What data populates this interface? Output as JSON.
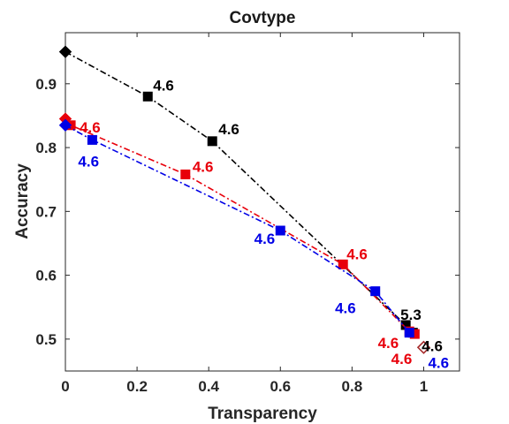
{
  "chart_data": {
    "type": "line",
    "title": "Covtype",
    "xlabel": "Transparency",
    "ylabel": "Accuracy",
    "xlim": [
      0,
      1.1
    ],
    "ylim": [
      0.45,
      0.98
    ],
    "xticks": [
      0,
      0.2,
      0.4,
      0.6,
      0.8,
      1
    ],
    "xtick_labels": [
      "0",
      "0.2",
      "0.4",
      "0.6",
      "0.8",
      "1"
    ],
    "yticks": [
      0.5,
      0.6,
      0.7,
      0.8,
      0.9
    ],
    "ytick_labels": [
      "0.5",
      "0.6",
      "0.7",
      "0.8",
      "0.9"
    ],
    "grid": false,
    "legend": false,
    "series": [
      {
        "color": "#000000",
        "line_style": "dash-dot",
        "start_marker": {
          "shape": "diamond",
          "x": 0.0,
          "y": 0.95
        },
        "points": [
          {
            "x": 0.23,
            "y": 0.88,
            "label": "4.6"
          },
          {
            "x": 0.41,
            "y": 0.81,
            "label": "4.6"
          },
          {
            "x": 0.95,
            "y": 0.522,
            "label": "5.3"
          },
          {
            "x": 0.97,
            "y": 0.51,
            "label": "4.6"
          }
        ]
      },
      {
        "color": "#e8000b",
        "line_style": "dash-dot",
        "start_marker": {
          "shape": "diamond",
          "x": 0.0,
          "y": 0.845
        },
        "points": [
          {
            "x": 0.015,
            "y": 0.835,
            "label": "4.6"
          },
          {
            "x": 0.335,
            "y": 0.758,
            "label": "4.6"
          },
          {
            "x": 0.775,
            "y": 0.617,
            "label": "4.6"
          },
          {
            "x": 0.96,
            "y": 0.512,
            "label": "4.6"
          },
          {
            "x": 0.975,
            "y": 0.508,
            "label": "4.6"
          }
        ]
      },
      {
        "color": "#0000e6",
        "line_style": "dash-dot",
        "start_marker": {
          "shape": "diamond",
          "x": 0.0,
          "y": 0.835
        },
        "points": [
          {
            "x": 0.075,
            "y": 0.812,
            "label": "4.6"
          },
          {
            "x": 0.6,
            "y": 0.67,
            "label": "4.6"
          },
          {
            "x": 0.865,
            "y": 0.575,
            "label": "4.6"
          },
          {
            "x": 0.96,
            "y": 0.51,
            "label": null
          }
        ]
      }
    ],
    "end_marker": {
      "shape": "hollow-diamond",
      "x": 1.0,
      "y": 0.487,
      "label": "4.6",
      "color": "#a52a2a"
    }
  }
}
